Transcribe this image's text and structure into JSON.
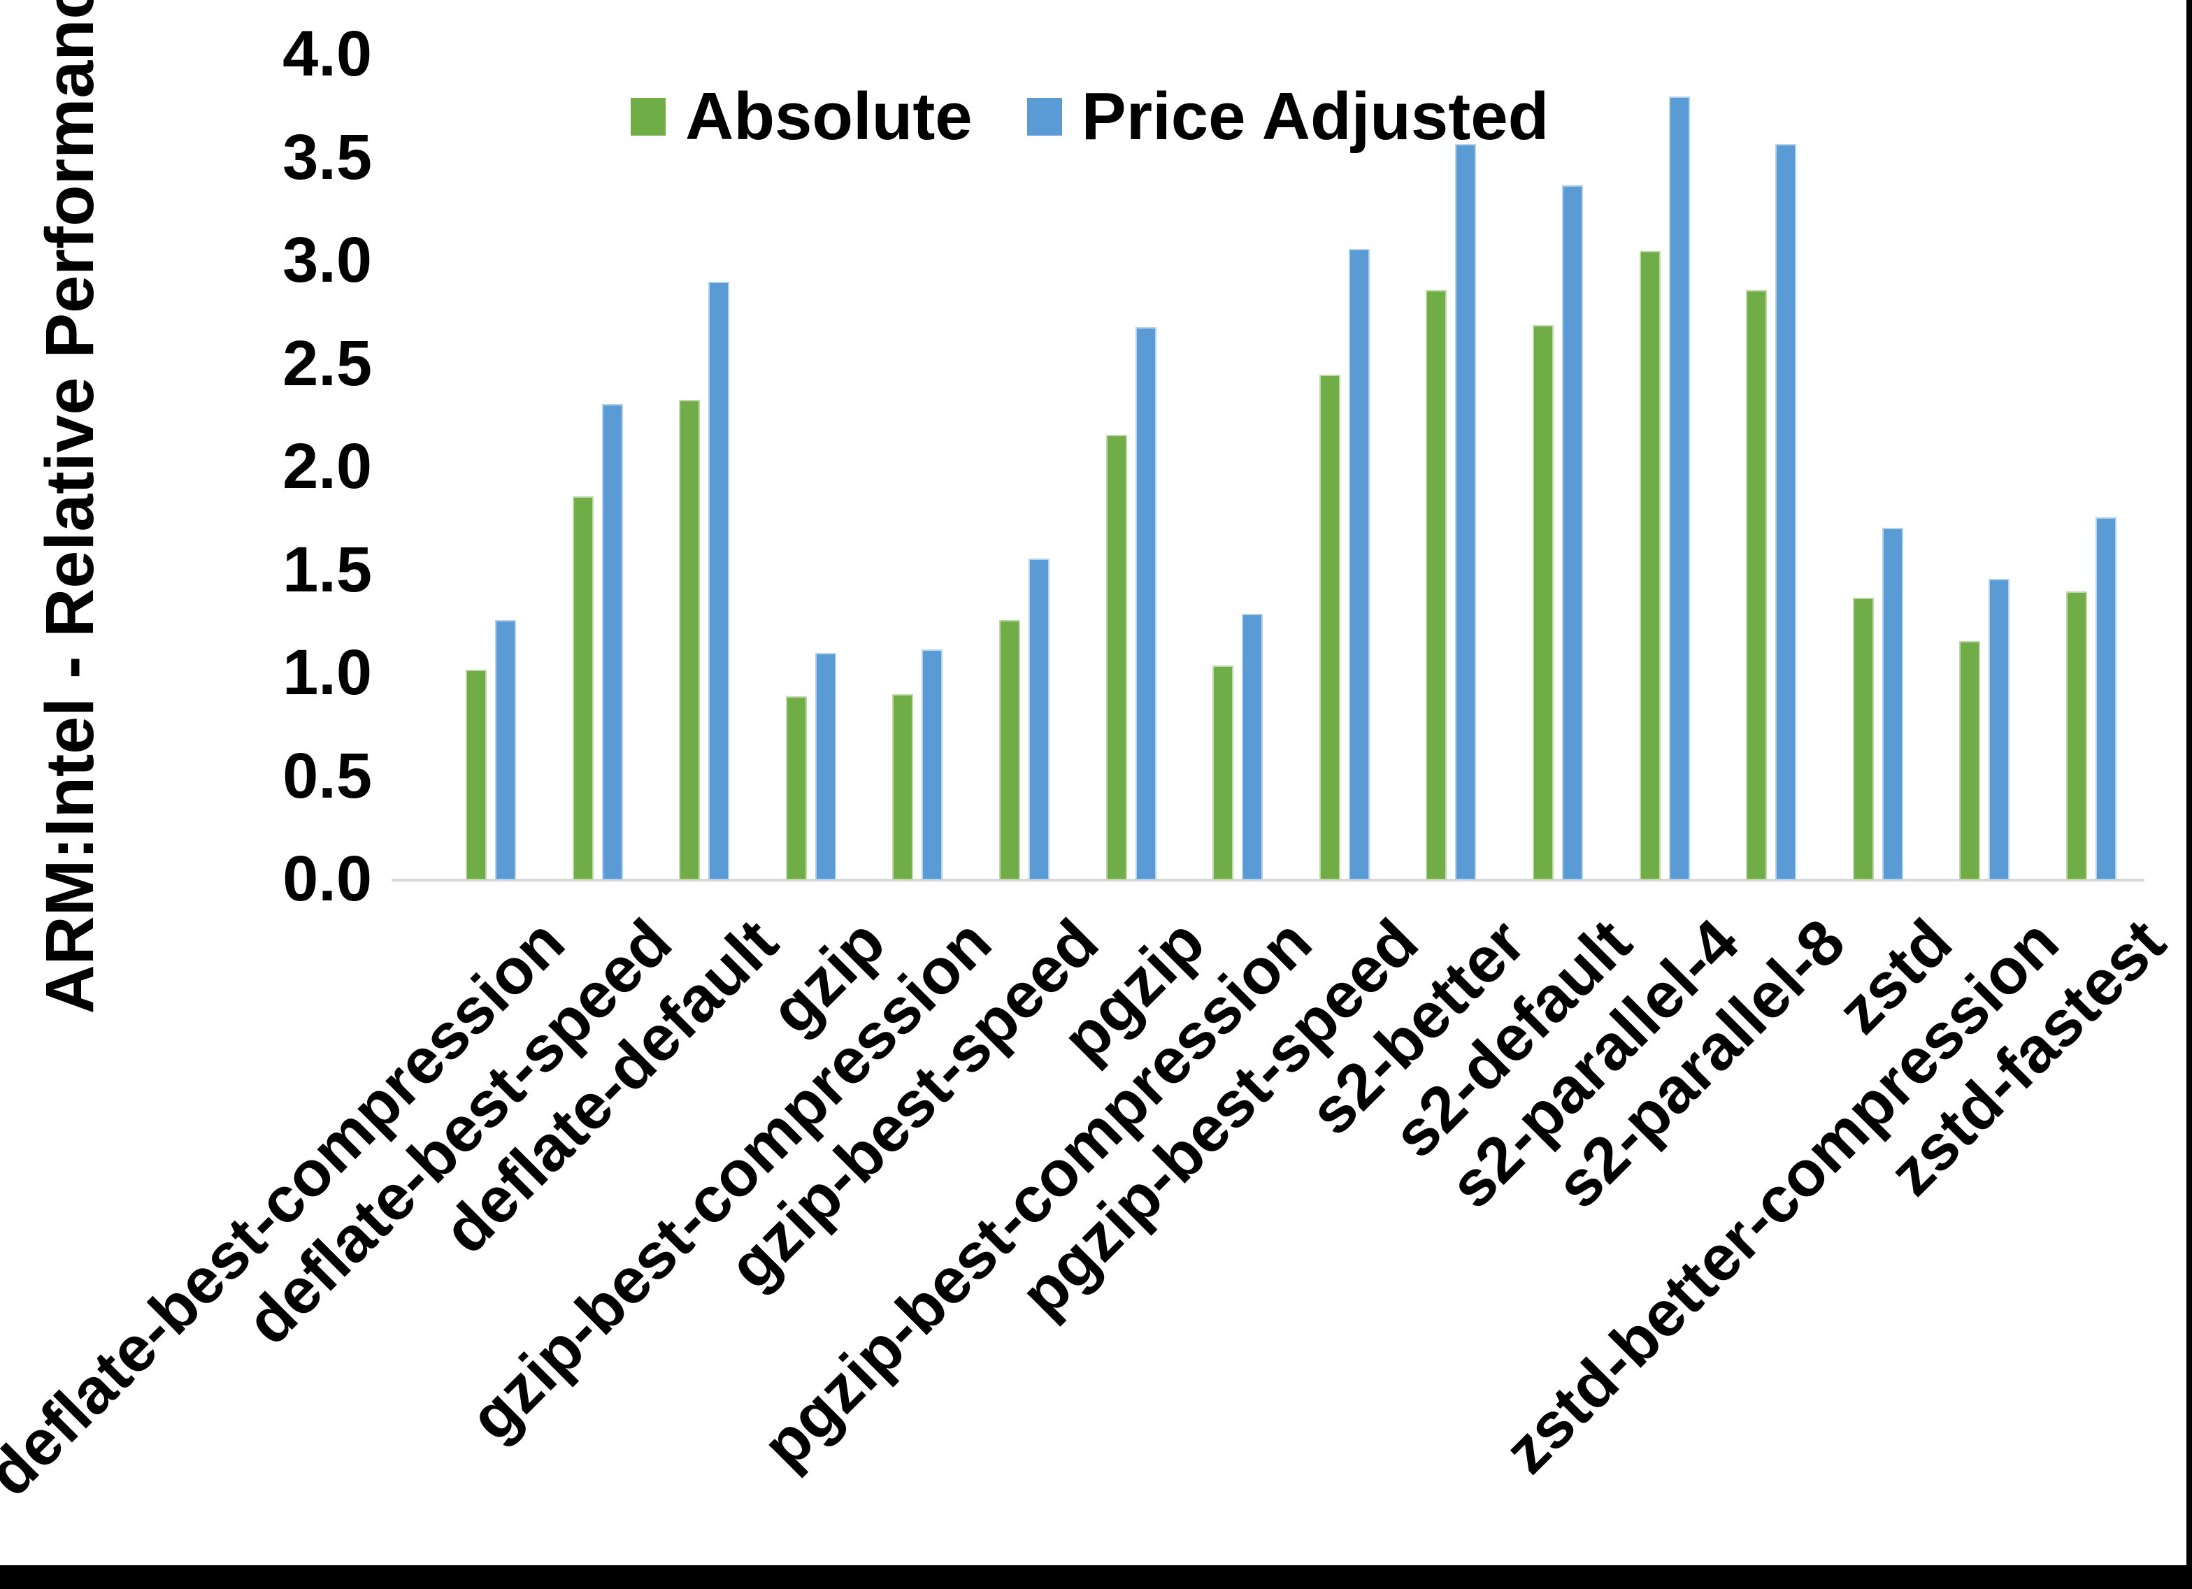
{
  "chart_data": {
    "type": "bar",
    "title": "",
    "xlabel": "",
    "ylabel": "ARM:Intel - Relative Performance",
    "ylim": [
      0.0,
      4.0
    ],
    "yticks": [
      "0.0",
      "0.5",
      "1.0",
      "1.5",
      "2.0",
      "2.5",
      "3.0",
      "3.5",
      "4.0"
    ],
    "grid": false,
    "legend_position": "top-center",
    "categories": [
      "deflate-best-compression",
      "deflate-best-speed",
      "deflate-default",
      "gzip",
      "gzip-best-compression",
      "gzip-best-speed",
      "pgzip",
      "pgzip-best-compression",
      "pgzip-best-speed",
      "s2-better",
      "s2-default",
      "s2-parallel-4",
      "s2-parallel-8",
      "zstd",
      "zstd-better-compression",
      "zstd-fastest"
    ],
    "series": [
      {
        "name": "Absolute",
        "color": "#70AD47",
        "values": [
          1.02,
          1.86,
          2.33,
          0.89,
          0.9,
          1.26,
          2.16,
          1.04,
          2.45,
          2.86,
          2.69,
          3.05,
          2.86,
          1.37,
          1.16,
          1.4
        ]
      },
      {
        "name": "Price Adjusted",
        "color": "#5B9BD5",
        "values": [
          1.26,
          2.31,
          2.9,
          1.1,
          1.12,
          1.56,
          2.68,
          1.29,
          3.06,
          3.57,
          3.37,
          3.8,
          3.57,
          1.71,
          1.46,
          1.76
        ]
      }
    ],
    "colors": {
      "axis_line": "#D9D9D9",
      "text": "#000000",
      "background": "#FFFFFF",
      "window_border": "#000000"
    }
  }
}
